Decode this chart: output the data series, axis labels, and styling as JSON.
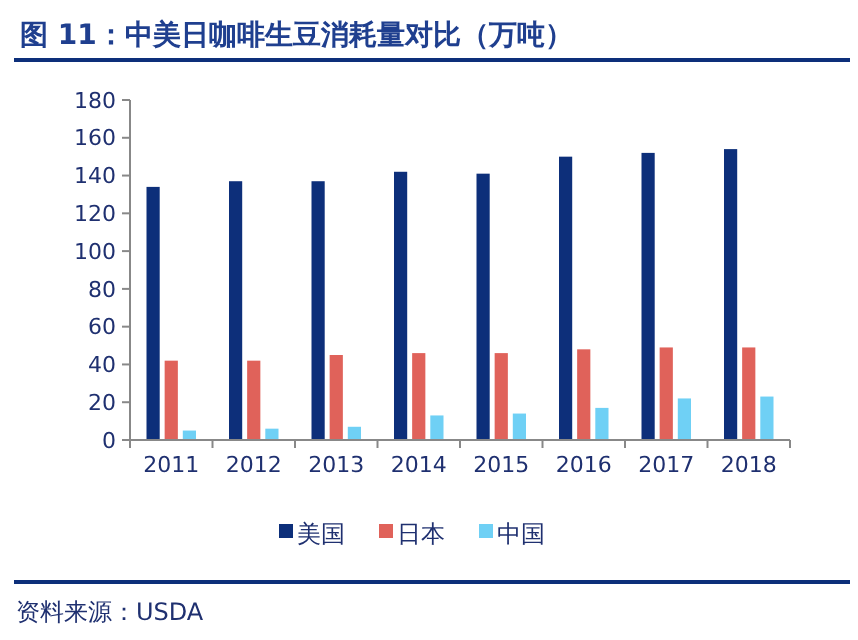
{
  "chart_data": {
    "type": "bar",
    "title": "图 11：中美日咖啡生豆消耗量对比（万吨）",
    "categories": [
      "2011",
      "2012",
      "2013",
      "2014",
      "2015",
      "2016",
      "2017",
      "2018"
    ],
    "series": [
      {
        "name": "美国",
        "color": "#0d2f7a",
        "values": [
          134,
          137,
          137,
          142,
          141,
          150,
          152,
          154
        ]
      },
      {
        "name": "日本",
        "color": "#e0625a",
        "values": [
          42,
          42,
          45,
          46,
          46,
          48,
          49,
          49
        ]
      },
      {
        "name": "中国",
        "color": "#6fd0f5",
        "values": [
          5,
          6,
          7,
          13,
          14,
          17,
          22,
          23
        ]
      }
    ],
    "ylim": [
      0,
      180
    ],
    "yticks": [
      0,
      20,
      40,
      60,
      80,
      100,
      120,
      140,
      160,
      180
    ],
    "grid": false,
    "legend": "bottom",
    "annotations": [
      "资料来源：USDA"
    ]
  }
}
